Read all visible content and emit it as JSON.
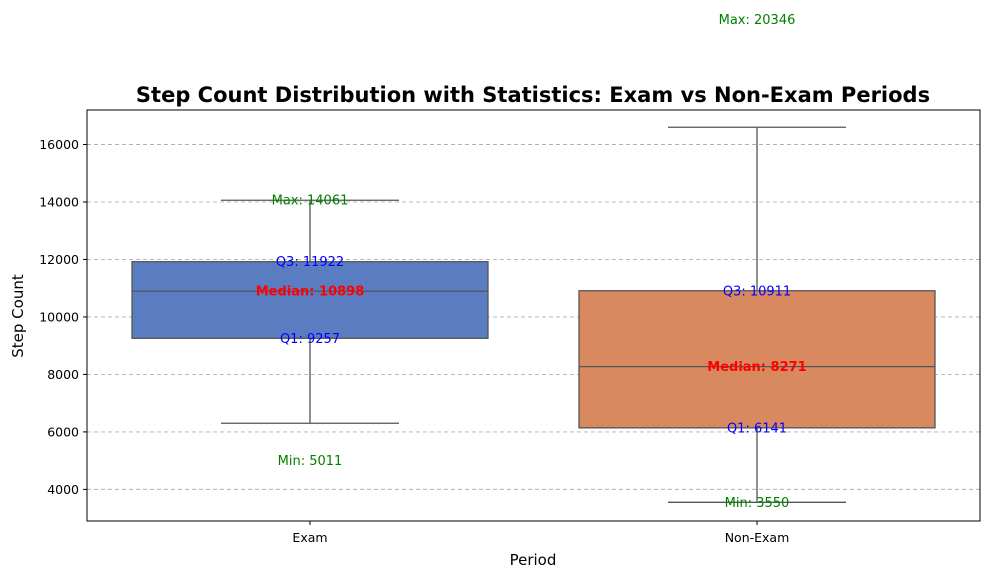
{
  "chart_data": {
    "type": "box",
    "title": "Step Count Distribution with Statistics: Exam vs Non-Exam Periods",
    "xlabel": "Period",
    "ylabel": "Step Count",
    "ylim": [
      2900,
      17200
    ],
    "yticks": [
      4000,
      6000,
      8000,
      10000,
      12000,
      14000,
      16000
    ],
    "grid": "y-dashed",
    "categories": [
      "Exam",
      "Non-Exam"
    ],
    "boxes": [
      {
        "category": "Exam",
        "color": "#5a7dc2",
        "whisker_low": 6300,
        "q1": 9257,
        "median": 10898,
        "q3": 11922,
        "whisker_high": 14061,
        "labels": {
          "max": "Max: 14061",
          "q3": "Q3: 11922",
          "median": "Median: 10898",
          "q1": "Q1: 9257",
          "min": "Min: 5011"
        },
        "label_values": {
          "max": 14061,
          "q3": 11922,
          "median": 10898,
          "q1": 9257,
          "min": 5011
        }
      },
      {
        "category": "Non-Exam",
        "color": "#d8895f",
        "whisker_low": 3550,
        "q1": 6141,
        "median": 8271,
        "q3": 10911,
        "whisker_high": 16600,
        "labels": {
          "max": "Max: 20346",
          "q3": "Q3: 10911",
          "median": "Median: 8271",
          "q1": "Q1: 6141",
          "min": "Min: 3550"
        },
        "label_values": {
          "max": 20346,
          "q3": 10911,
          "median": 8271,
          "q1": 6141,
          "min": 3550
        }
      }
    ],
    "colors": {
      "whisker": "#555555",
      "grid": "#b0b0b0",
      "min_max_text": "#008000",
      "quartile_text": "#0000ff",
      "median_text": "#ff0000"
    }
  }
}
